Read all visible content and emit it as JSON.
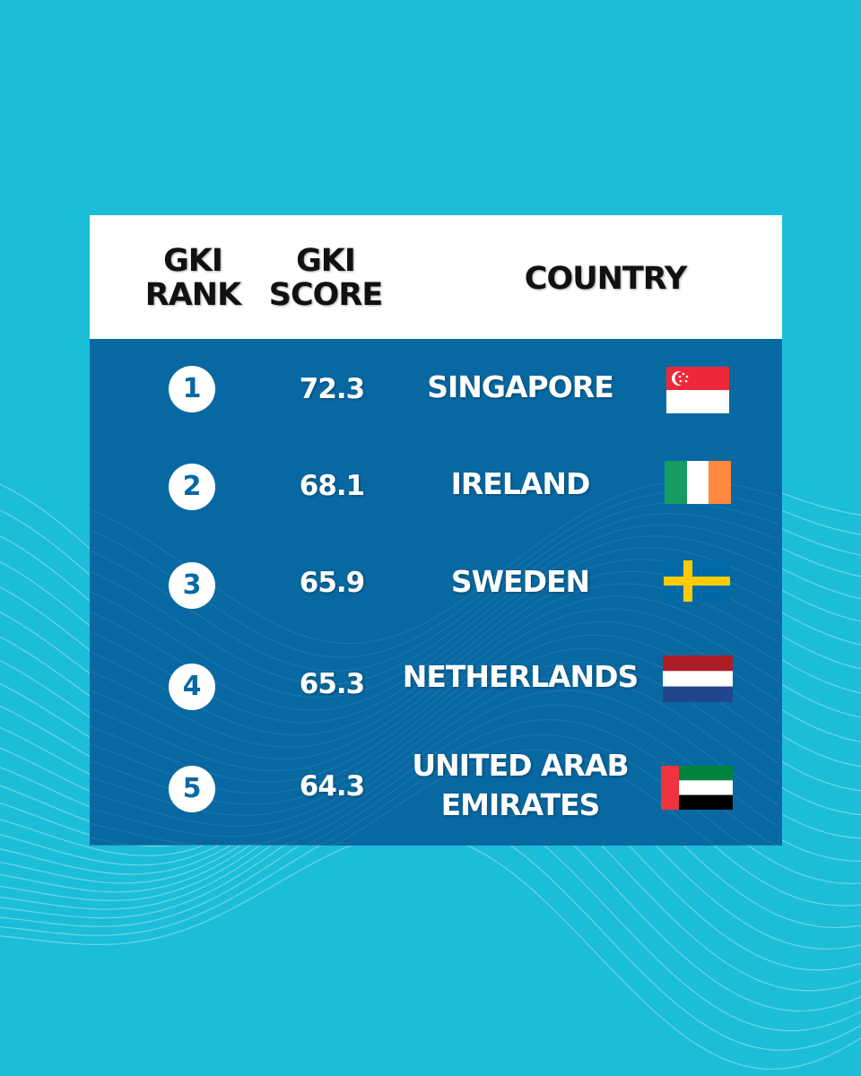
{
  "headers": {
    "rank": "GKI\nRANK",
    "score": "GKI\nSCORE",
    "country": "COUNTRY"
  },
  "colors": {
    "background": "#1cbdd9",
    "table_body": "#0869a2",
    "header_bg": "#ffffff"
  },
  "chart_data": {
    "type": "table",
    "columns": [
      "GKI RANK",
      "GKI SCORE",
      "COUNTRY"
    ],
    "rows": [
      {
        "rank": "1",
        "score": "72.3",
        "country": "SINGAPORE",
        "flag": "singapore-flag-icon"
      },
      {
        "rank": "2",
        "score": "68.1",
        "country": "IRELAND",
        "flag": "ireland-flag-icon"
      },
      {
        "rank": "3",
        "score": "65.9",
        "country": "SWEDEN",
        "flag": "sweden-flag-icon"
      },
      {
        "rank": "4",
        "score": "65.3",
        "country": "NETHERLANDS",
        "flag": "netherlands-flag-icon"
      },
      {
        "rank": "5",
        "score": "64.3",
        "country": "UNITED ARAB EMIRATES",
        "flag": "uae-flag-icon"
      }
    ]
  }
}
